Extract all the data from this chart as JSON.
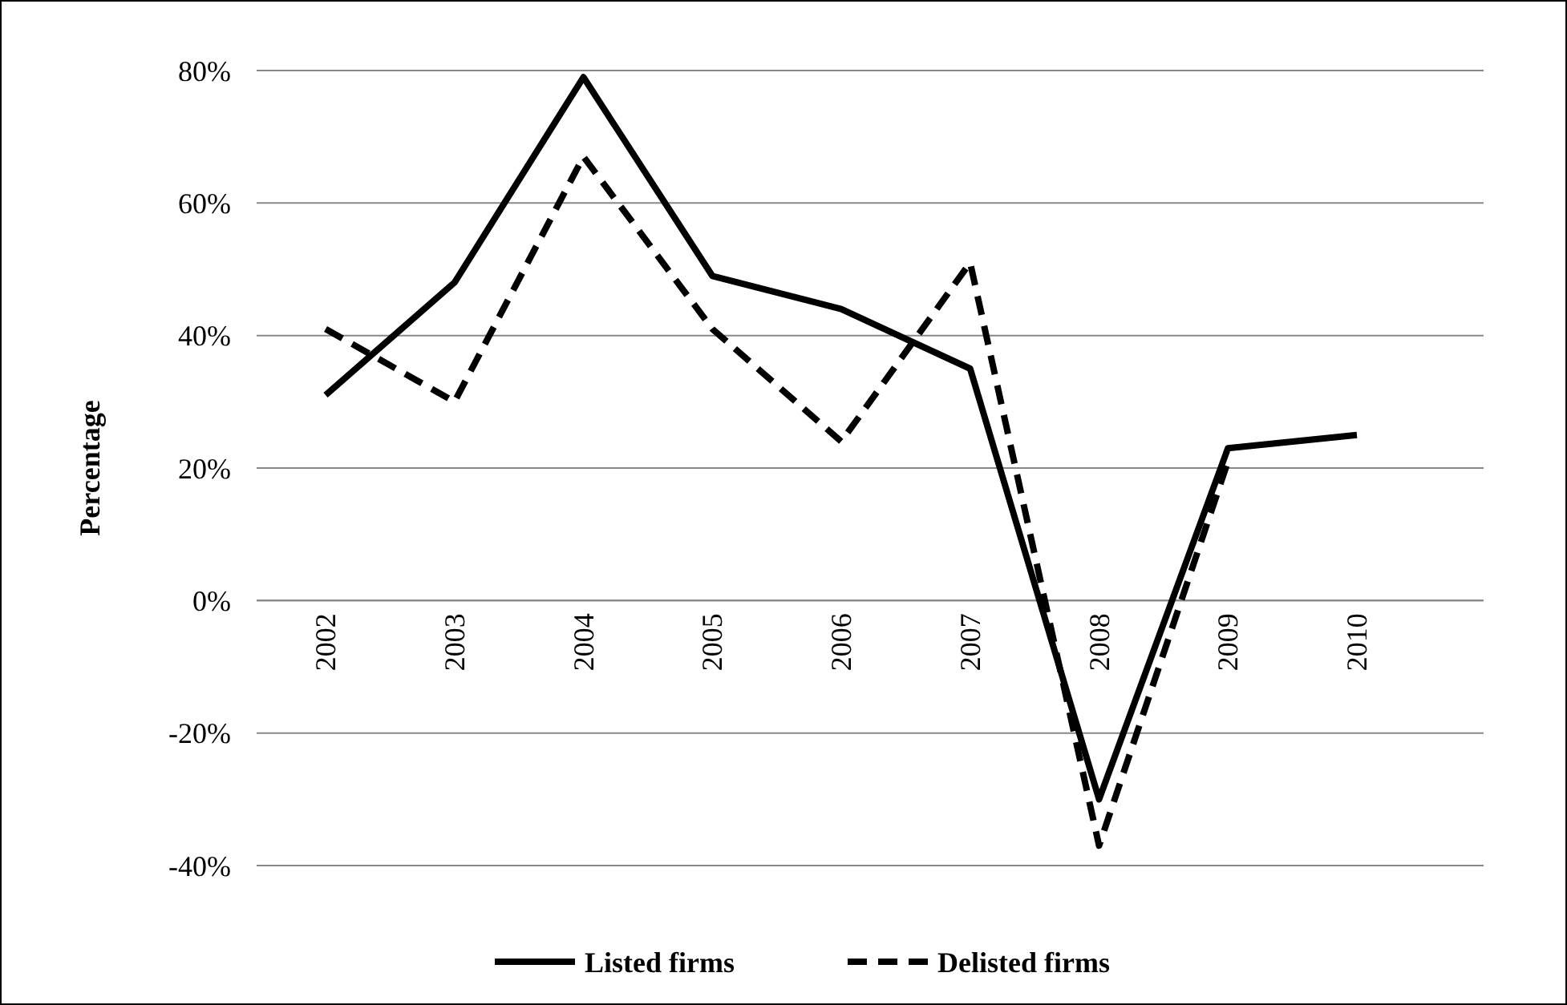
{
  "chart_data": {
    "type": "line",
    "ylabel": "Percentage",
    "categories": [
      "2002",
      "2003",
      "2004",
      "2005",
      "2006",
      "2007",
      "2008",
      "2009",
      "2010"
    ],
    "series": [
      {
        "name": "Listed firms",
        "color": "#000000",
        "line_style": "solid",
        "values": [
          31,
          48,
          79,
          49,
          44,
          35,
          -30,
          23,
          25
        ]
      },
      {
        "name": "Delisted firms",
        "color": "#000000",
        "line_style": "dashed",
        "values": [
          41,
          30,
          67,
          41,
          24,
          51,
          -37,
          21,
          null
        ]
      }
    ],
    "ylim": [
      -40,
      80
    ],
    "yticks": [
      {
        "value": -40,
        "label": "-40%"
      },
      {
        "value": -20,
        "label": "-20%"
      },
      {
        "value": 0,
        "label": "0%"
      },
      {
        "value": 20,
        "label": "20%"
      },
      {
        "value": 40,
        "label": "40%"
      },
      {
        "value": 60,
        "label": "60%"
      },
      {
        "value": 80,
        "label": "80%"
      }
    ],
    "grid": "y",
    "legend": "bottom"
  }
}
